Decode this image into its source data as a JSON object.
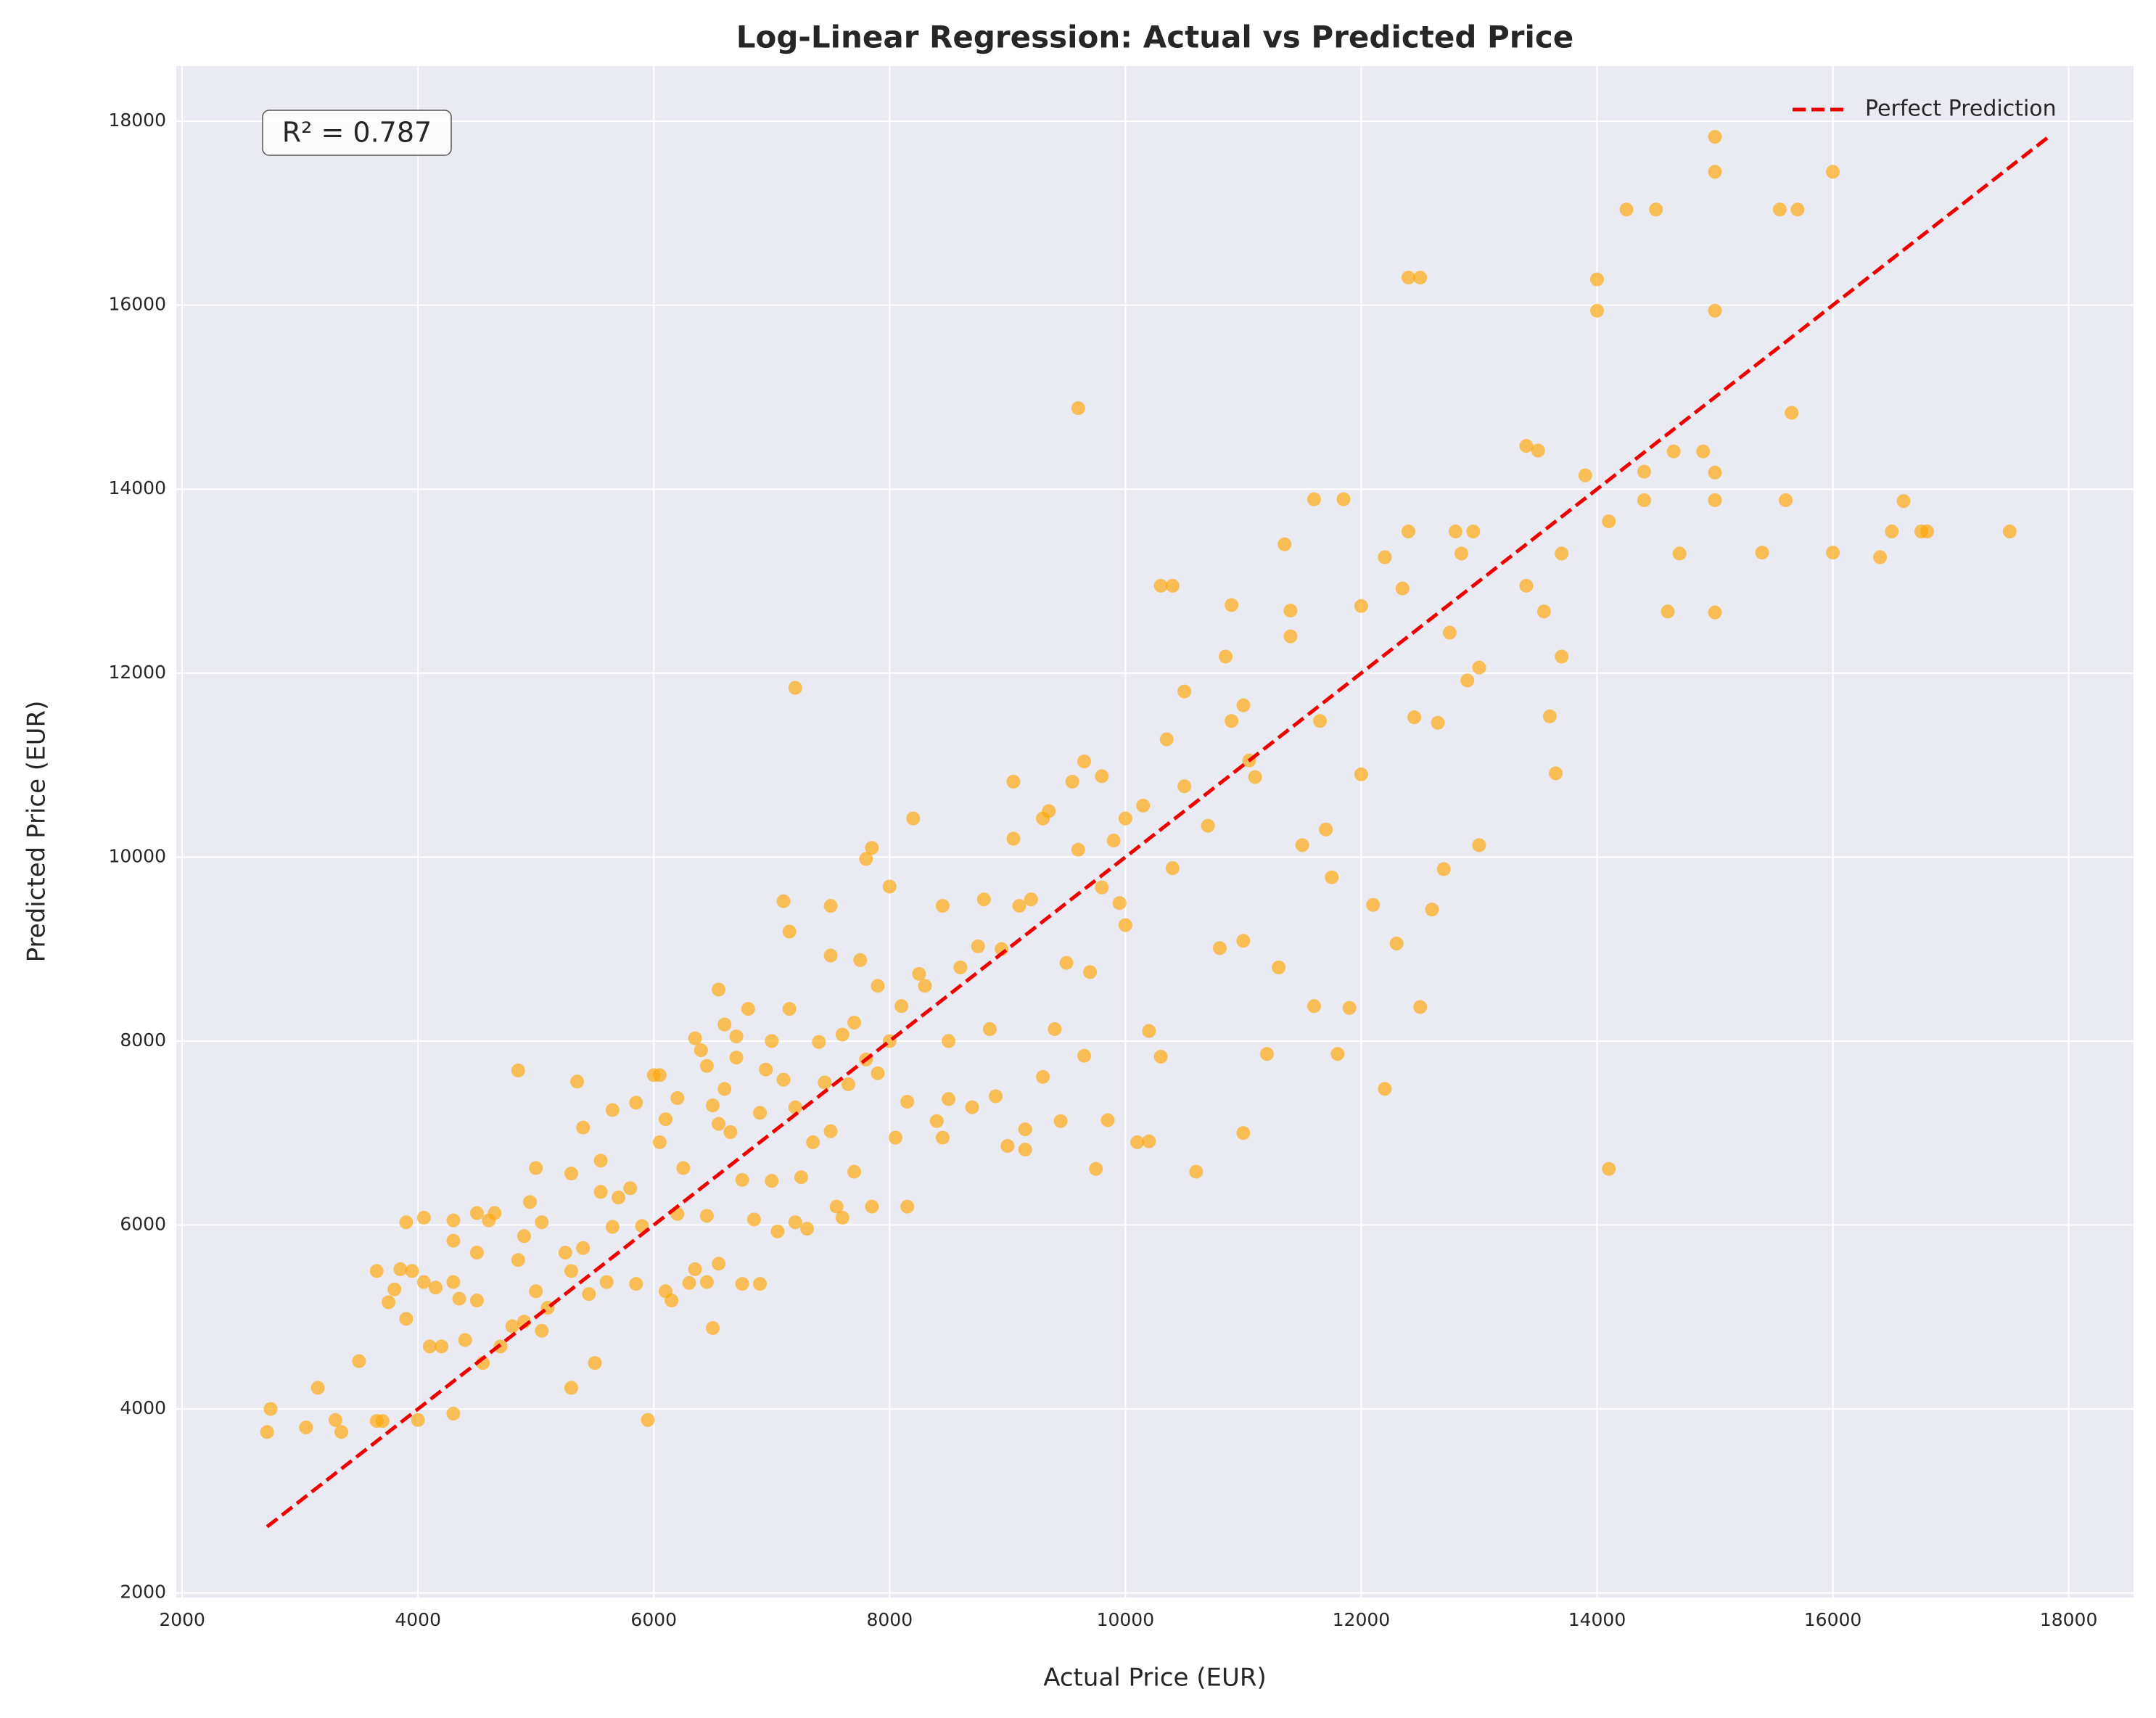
{
  "chart_data": {
    "type": "scatter",
    "title": "Log-Linear Regression: Actual vs Predicted Price",
    "x_label": "Actual Price (EUR)",
    "y_label": "Predicted Price (EUR)",
    "annotation": "R² = 0.787",
    "xlim": [
      1950,
      18550
    ],
    "ylim": [
      1950,
      18600
    ],
    "xticks": [
      2000,
      4000,
      6000,
      8000,
      10000,
      12000,
      14000,
      16000,
      18000
    ],
    "yticks": [
      2000,
      4000,
      6000,
      8000,
      10000,
      12000,
      14000,
      16000,
      18000
    ],
    "grid": true,
    "legend_loc": "upper right",
    "points": {
      "color": "#ffa500",
      "x": [
        2720,
        2750,
        3050,
        3150,
        3300,
        3350,
        3500,
        3650,
        3700,
        3650,
        3750,
        3800,
        3850,
        3900,
        3900,
        3950,
        4000,
        4050,
        4050,
        4100,
        4150,
        4200,
        4300,
        4300,
        4300,
        4300,
        4350,
        4400,
        4500,
        4500,
        4500,
        4550,
        4600,
        4650,
        4700,
        4800,
        4850,
        4850,
        4900,
        4900,
        4950,
        5000,
        5000,
        5050,
        5050,
        5100,
        5250,
        5300,
        5300,
        5300,
        5350,
        5400,
        5400,
        5450,
        5500,
        5550,
        5550,
        5600,
        5650,
        5650,
        5700,
        5800,
        5850,
        5850,
        5900,
        5950,
        6000,
        6050,
        6050,
        6100,
        6100,
        6150,
        6200,
        6200,
        6250,
        6300,
        6350,
        6350,
        6400,
        6450,
        6450,
        6450,
        6500,
        6500,
        6550,
        6550,
        6550,
        6600,
        6600,
        6650,
        6700,
        6700,
        6750,
        6750,
        6800,
        6850,
        6900,
        6900,
        6950,
        7000,
        7000,
        7050,
        7100,
        7100,
        7150,
        7150,
        7200,
        7200,
        7200,
        7250,
        7300,
        7350,
        7400,
        7450,
        7500,
        7500,
        7500,
        7550,
        7600,
        7600,
        7650,
        7700,
        7700,
        7750,
        7800,
        7800,
        7850,
        7850,
        7900,
        7900,
        8000,
        8000,
        8050,
        8100,
        8150,
        8150,
        8200,
        8250,
        8300,
        8400,
        8450,
        8450,
        8500,
        8500,
        8600,
        8700,
        8750,
        8800,
        8850,
        8900,
        8950,
        9000,
        9050,
        9050,
        9100,
        9150,
        9150,
        9200,
        9300,
        9300,
        9350,
        9400,
        9450,
        9500,
        9550,
        9600,
        9600,
        9650,
        9650,
        9700,
        9750,
        9800,
        9800,
        9850,
        9900,
        9950,
        10000,
        10000,
        10100,
        10150,
        10200,
        10200,
        10300,
        10300,
        10350,
        10400,
        10400,
        10500,
        10500,
        10600,
        10700,
        10800,
        10850,
        10900,
        10900,
        11000,
        11000,
        11000,
        11050,
        11100,
        11200,
        11300,
        11350,
        11400,
        11400,
        11500,
        11600,
        11600,
        11650,
        11700,
        11750,
        11800,
        11850,
        11900,
        12000,
        12000,
        12100,
        12200,
        12200,
        12300,
        12350,
        12400,
        12400,
        12450,
        12500,
        12500,
        12600,
        12650,
        12700,
        12750,
        12800,
        12850,
        12900,
        12950,
        13000,
        13000,
        13400,
        13400,
        13500,
        13550,
        13600,
        13650,
        13700,
        13700,
        13900,
        14000,
        14000,
        14100,
        14100,
        14250,
        14400,
        14400,
        14500,
        14600,
        14650,
        14700,
        14900,
        15000,
        15000,
        15000,
        15000,
        15000,
        15000,
        15400,
        15550,
        15600,
        15650,
        15700,
        16000,
        16000,
        16400,
        16500,
        16600,
        16750,
        16800,
        17500
      ],
      "y": [
        3750,
        4000,
        3800,
        4230,
        3880,
        3750,
        4520,
        3870,
        3870,
        5500,
        5160,
        5300,
        5520,
        6030,
        4980,
        5500,
        3880,
        5380,
        6080,
        4680,
        5320,
        4680,
        6050,
        3950,
        5380,
        5830,
        5200,
        4750,
        6130,
        5180,
        5700,
        4500,
        6050,
        6130,
        4680,
        4900,
        7680,
        5620,
        5880,
        4950,
        6250,
        5280,
        6620,
        4850,
        6030,
        5100,
        5700,
        4230,
        6560,
        5500,
        7560,
        5750,
        7060,
        5250,
        4500,
        6360,
        6700,
        5380,
        7250,
        5980,
        6300,
        6400,
        7330,
        5360,
        5990,
        3880,
        7630,
        6900,
        7630,
        5280,
        7150,
        5180,
        7380,
        6120,
        6620,
        5370,
        8030,
        5520,
        7900,
        7730,
        6100,
        5380,
        4880,
        7300,
        8560,
        7100,
        5580,
        8180,
        7480,
        7010,
        7820,
        8050,
        6490,
        5360,
        8350,
        6060,
        5360,
        7220,
        7690,
        6480,
        8000,
        5930,
        7580,
        9520,
        9190,
        8350,
        11840,
        6030,
        7280,
        6520,
        5960,
        6900,
        7990,
        7550,
        9470,
        8930,
        7020,
        6200,
        6080,
        8070,
        7530,
        8200,
        6580,
        8880,
        9980,
        7800,
        10100,
        6200,
        8600,
        7650,
        9680,
        8000,
        6950,
        8380,
        7340,
        6200,
        10420,
        8730,
        8600,
        7130,
        9470,
        6950,
        8000,
        7370,
        8800,
        7280,
        9030,
        9540,
        8130,
        7400,
        9000,
        6860,
        10200,
        10820,
        9470,
        6820,
        7040,
        9540,
        10420,
        7610,
        10500,
        8130,
        7130,
        8850,
        10820,
        14880,
        10080,
        11040,
        7840,
        8750,
        6610,
        10880,
        9670,
        7140,
        10180,
        9500,
        10420,
        9260,
        6900,
        10560,
        8110,
        6910,
        12950,
        7830,
        11280,
        12950,
        9880,
        11800,
        10770,
        6580,
        10340,
        9010,
        12180,
        11480,
        12740,
        9090,
        7000,
        11650,
        11050,
        10870,
        7860,
        8800,
        13400,
        12680,
        12400,
        10130,
        8380,
        13890,
        11480,
        10300,
        9780,
        7860,
        13890,
        8360,
        12730,
        10900,
        9480,
        13260,
        7480,
        9060,
        12920,
        16300,
        13540,
        11520,
        16300,
        8370,
        9430,
        11460,
        9870,
        12440,
        13540,
        13300,
        11920,
        13540,
        10130,
        12060,
        14470,
        12950,
        14420,
        12670,
        11530,
        10910,
        13300,
        12180,
        14150,
        16280,
        15940,
        13650,
        6610,
        17040,
        14190,
        13880,
        17040,
        12670,
        14410,
        13300,
        14410,
        17830,
        17450,
        15940,
        14180,
        13880,
        12660,
        13310,
        17040,
        13880,
        14830,
        17040,
        17450,
        13310,
        13260,
        13540,
        13870,
        13540,
        13540,
        13540
      ]
    },
    "reference_line": {
      "name": "Perfect Prediction",
      "color": "#ee0000",
      "x": [
        2720,
        17850
      ],
      "y": [
        2720,
        17850
      ]
    }
  }
}
